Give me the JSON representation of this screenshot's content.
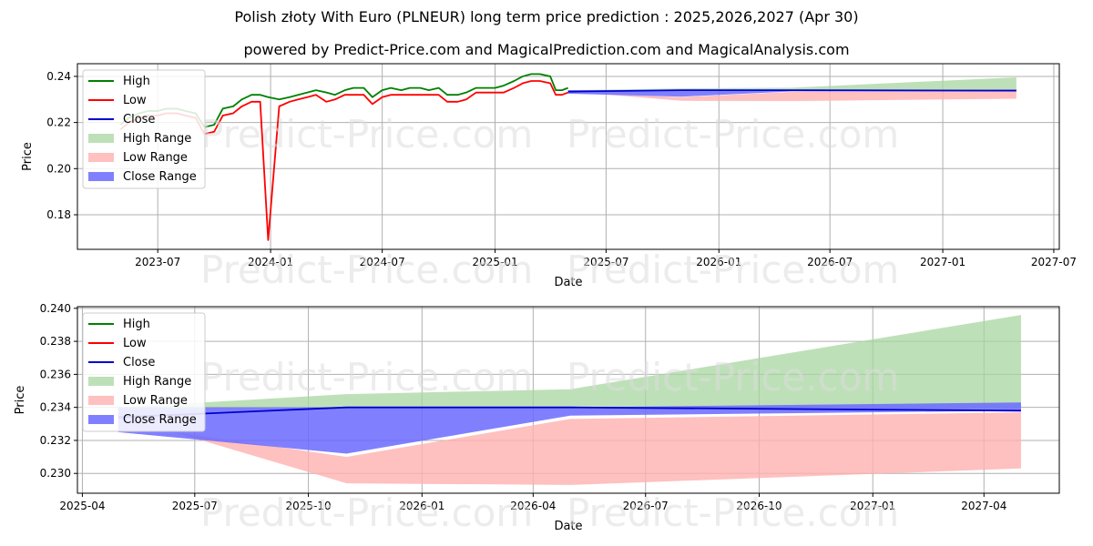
{
  "header": {
    "title": "Polish złoty With Euro (PLNEUR) long term price prediction : 2025,2026,2027 (Apr 30)",
    "subtitle": "powered by Predict-Price.com and MagicalPrediction.com and MagicalAnalysis.com"
  },
  "watermark": "Predict-Price.com",
  "colors": {
    "high": "#008000",
    "low": "#ff0000",
    "close": "#0000cc",
    "high_range": "#a8d5a0",
    "low_range": "#ffb0b0",
    "close_range": "#6a6aff",
    "grid": "#b0b0b0"
  },
  "chart_data": [
    {
      "type": "line",
      "xlabel": "Date",
      "ylabel": "Price",
      "ylim": [
        0.165,
        0.2455
      ],
      "xlim": [
        "2023-02-20",
        "2027-07-10"
      ],
      "grid": true,
      "legend_position": "top-left",
      "x_ticks": [
        "2023-07",
        "2024-01",
        "2024-07",
        "2025-01",
        "2025-07",
        "2026-01",
        "2026-07",
        "2027-01",
        "2027-07"
      ],
      "y_ticks": [
        "0.18",
        "0.20",
        "0.22",
        "0.24"
      ],
      "legend": [
        "High",
        "Low",
        "Close",
        "High Range",
        "Low Range",
        "Close Range"
      ],
      "history": {
        "dates": [
          "2023-05-01",
          "2023-05-15",
          "2023-06-01",
          "2023-06-15",
          "2023-07-01",
          "2023-07-15",
          "2023-08-01",
          "2023-08-15",
          "2023-09-01",
          "2023-09-15",
          "2023-10-01",
          "2023-10-15",
          "2023-11-01",
          "2023-11-15",
          "2023-12-01",
          "2023-12-15",
          "2023-12-28",
          "2024-01-15",
          "2024-02-01",
          "2024-02-15",
          "2024-03-01",
          "2024-03-15",
          "2024-04-01",
          "2024-04-15",
          "2024-05-01",
          "2024-05-15",
          "2024-06-01",
          "2024-06-15",
          "2024-07-01",
          "2024-07-15",
          "2024-08-01",
          "2024-08-15",
          "2024-09-01",
          "2024-09-15",
          "2024-10-01",
          "2024-10-15",
          "2024-11-01",
          "2024-11-15",
          "2024-12-01",
          "2024-12-15",
          "2025-01-01",
          "2025-01-15",
          "2025-02-01",
          "2025-02-15",
          "2025-03-01",
          "2025-03-15",
          "2025-04-01",
          "2025-04-10",
          "2025-04-20",
          "2025-04-30"
        ],
        "high": [
          0.219,
          0.222,
          0.224,
          0.225,
          0.225,
          0.226,
          0.226,
          0.225,
          0.224,
          0.218,
          0.219,
          0.226,
          0.227,
          0.23,
          0.232,
          0.232,
          0.231,
          0.23,
          0.231,
          0.232,
          0.233,
          0.234,
          0.233,
          0.232,
          0.234,
          0.235,
          0.235,
          0.231,
          0.234,
          0.235,
          0.234,
          0.235,
          0.235,
          0.234,
          0.235,
          0.232,
          0.232,
          0.233,
          0.235,
          0.235,
          0.235,
          0.236,
          0.238,
          0.24,
          0.241,
          0.241,
          0.24,
          0.234,
          0.234,
          0.235
        ],
        "low": [
          0.217,
          0.22,
          0.222,
          0.223,
          0.223,
          0.224,
          0.224,
          0.223,
          0.222,
          0.215,
          0.216,
          0.223,
          0.224,
          0.227,
          0.229,
          0.229,
          0.169,
          0.227,
          0.229,
          0.23,
          0.231,
          0.232,
          0.229,
          0.23,
          0.232,
          0.232,
          0.232,
          0.228,
          0.231,
          0.232,
          0.232,
          0.232,
          0.232,
          0.232,
          0.232,
          0.229,
          0.229,
          0.23,
          0.233,
          0.233,
          0.233,
          0.233,
          0.235,
          0.237,
          0.238,
          0.238,
          0.237,
          0.232,
          0.232,
          0.233
        ],
        "close": [
          0.218,
          0.221,
          0.223,
          0.224,
          0.224,
          0.225,
          0.225,
          0.224,
          0.223,
          0.216,
          0.217,
          0.224,
          0.225,
          0.229,
          0.231,
          0.231,
          0.23,
          0.229,
          0.23,
          0.231,
          0.232,
          0.233,
          0.231,
          0.231,
          0.233,
          0.234,
          0.234,
          0.23,
          0.233,
          0.234,
          0.233,
          0.234,
          0.234,
          0.233,
          0.234,
          0.231,
          0.231,
          0.232,
          0.234,
          0.234,
          0.234,
          0.235,
          0.237,
          0.239,
          0.24,
          0.24,
          0.239,
          0.233,
          0.233,
          0.234
        ]
      },
      "forecast": {
        "dates": [
          "2025-04-30",
          "2025-11-01",
          "2026-05-01",
          "2027-05-01"
        ],
        "high_range_upper": [
          0.234,
          0.2348,
          0.2351,
          0.2396
        ],
        "high_range_lower": [
          0.234,
          0.234,
          0.234,
          0.234
        ],
        "low_range_upper": [
          0.233,
          0.231,
          0.2333,
          0.2337
        ],
        "low_range_lower": [
          0.2335,
          0.2294,
          0.2293,
          0.2303
        ],
        "close_range_upper": [
          0.234,
          0.234,
          0.234,
          0.2343
        ],
        "close_range_lower": [
          0.2325,
          0.2312,
          0.2335,
          0.2338
        ],
        "close": [
          0.2334,
          0.234,
          0.234,
          0.2338
        ]
      }
    },
    {
      "type": "line",
      "xlabel": "Date",
      "ylabel": "Price",
      "ylim": [
        0.2288,
        0.2401
      ],
      "xlim": [
        "2025-03-28",
        "2027-06-01"
      ],
      "grid": true,
      "legend_position": "top-left",
      "x_ticks": [
        "2025-04",
        "2025-07",
        "2025-10",
        "2026-01",
        "2026-04",
        "2026-07",
        "2026-10",
        "2027-01",
        "2027-04"
      ],
      "y_ticks": [
        "0.230",
        "0.232",
        "0.234",
        "0.236",
        "0.238",
        "0.240"
      ],
      "legend": [
        "High",
        "Low",
        "Close",
        "High Range",
        "Low Range",
        "Close Range"
      ]
    }
  ]
}
